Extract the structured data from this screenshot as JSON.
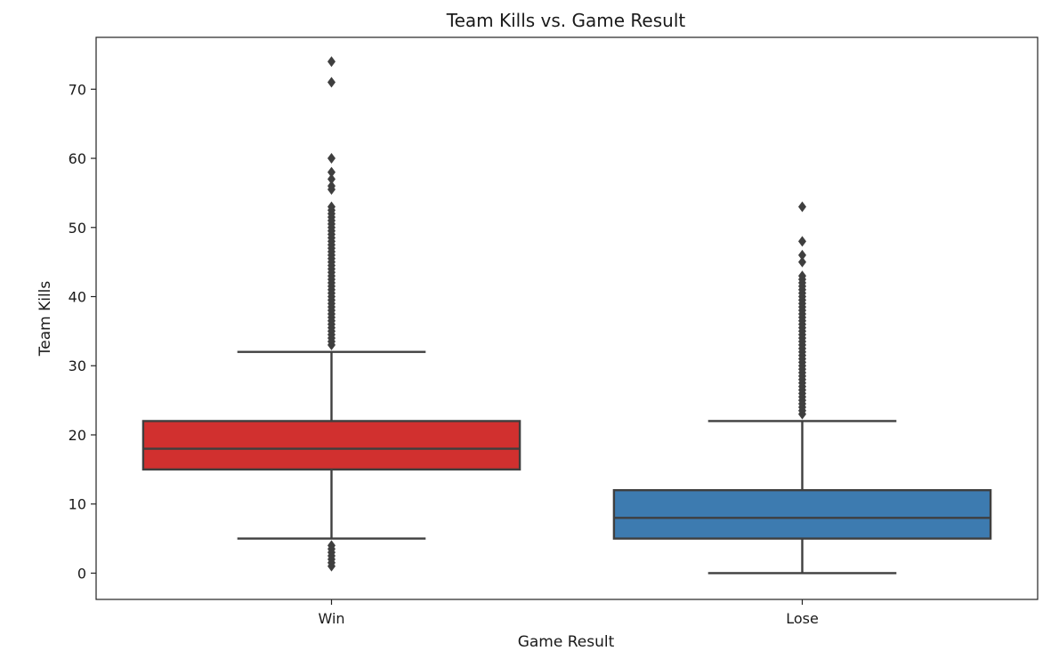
{
  "chart_data": {
    "type": "box",
    "title": "Team Kills vs. Game Result",
    "xlabel": "Game Result",
    "ylabel": "Team Kills",
    "categories": [
      "Win",
      "Lose"
    ],
    "ylim": [
      -3.8,
      77.5
    ],
    "yticks": [
      0,
      10,
      20,
      30,
      40,
      50,
      60,
      70
    ],
    "grid": false,
    "boxes": [
      {
        "category": "Win",
        "color": "#D1302F",
        "whisker_low": 5,
        "q1": 15,
        "median": 18,
        "q3": 22,
        "whisker_high": 32,
        "outliers": [
          1,
          1.5,
          2,
          2.5,
          3,
          3.5,
          4,
          33,
          33.5,
          34,
          34.5,
          35,
          35.5,
          36,
          36.5,
          37,
          37.5,
          38,
          38.5,
          39,
          39.5,
          40,
          40.5,
          41,
          41.5,
          42,
          42.5,
          43,
          43.5,
          44,
          44.5,
          45,
          45.5,
          46,
          46.5,
          47,
          47.5,
          48,
          48.5,
          49,
          49.5,
          50,
          50.5,
          51,
          51.5,
          52,
          52.5,
          53,
          55.5,
          56,
          57,
          58,
          60,
          71,
          74
        ]
      },
      {
        "category": "Lose",
        "color": "#3D7BB0",
        "whisker_low": 0,
        "q1": 5,
        "median": 8,
        "q3": 12,
        "whisker_high": 22,
        "outliers": [
          23,
          23.5,
          24,
          24.5,
          25,
          25.5,
          26,
          26.5,
          27,
          27.5,
          28,
          28.5,
          29,
          29.5,
          30,
          30.5,
          31,
          31.5,
          32,
          32.5,
          33,
          33.5,
          34,
          34.5,
          35,
          35.5,
          36,
          36.5,
          37,
          37.5,
          38,
          38.5,
          39,
          39.5,
          40,
          40.5,
          41,
          41.5,
          42,
          42.5,
          43,
          45,
          46,
          48,
          53
        ]
      }
    ],
    "line_color": "#3F3F3F"
  }
}
